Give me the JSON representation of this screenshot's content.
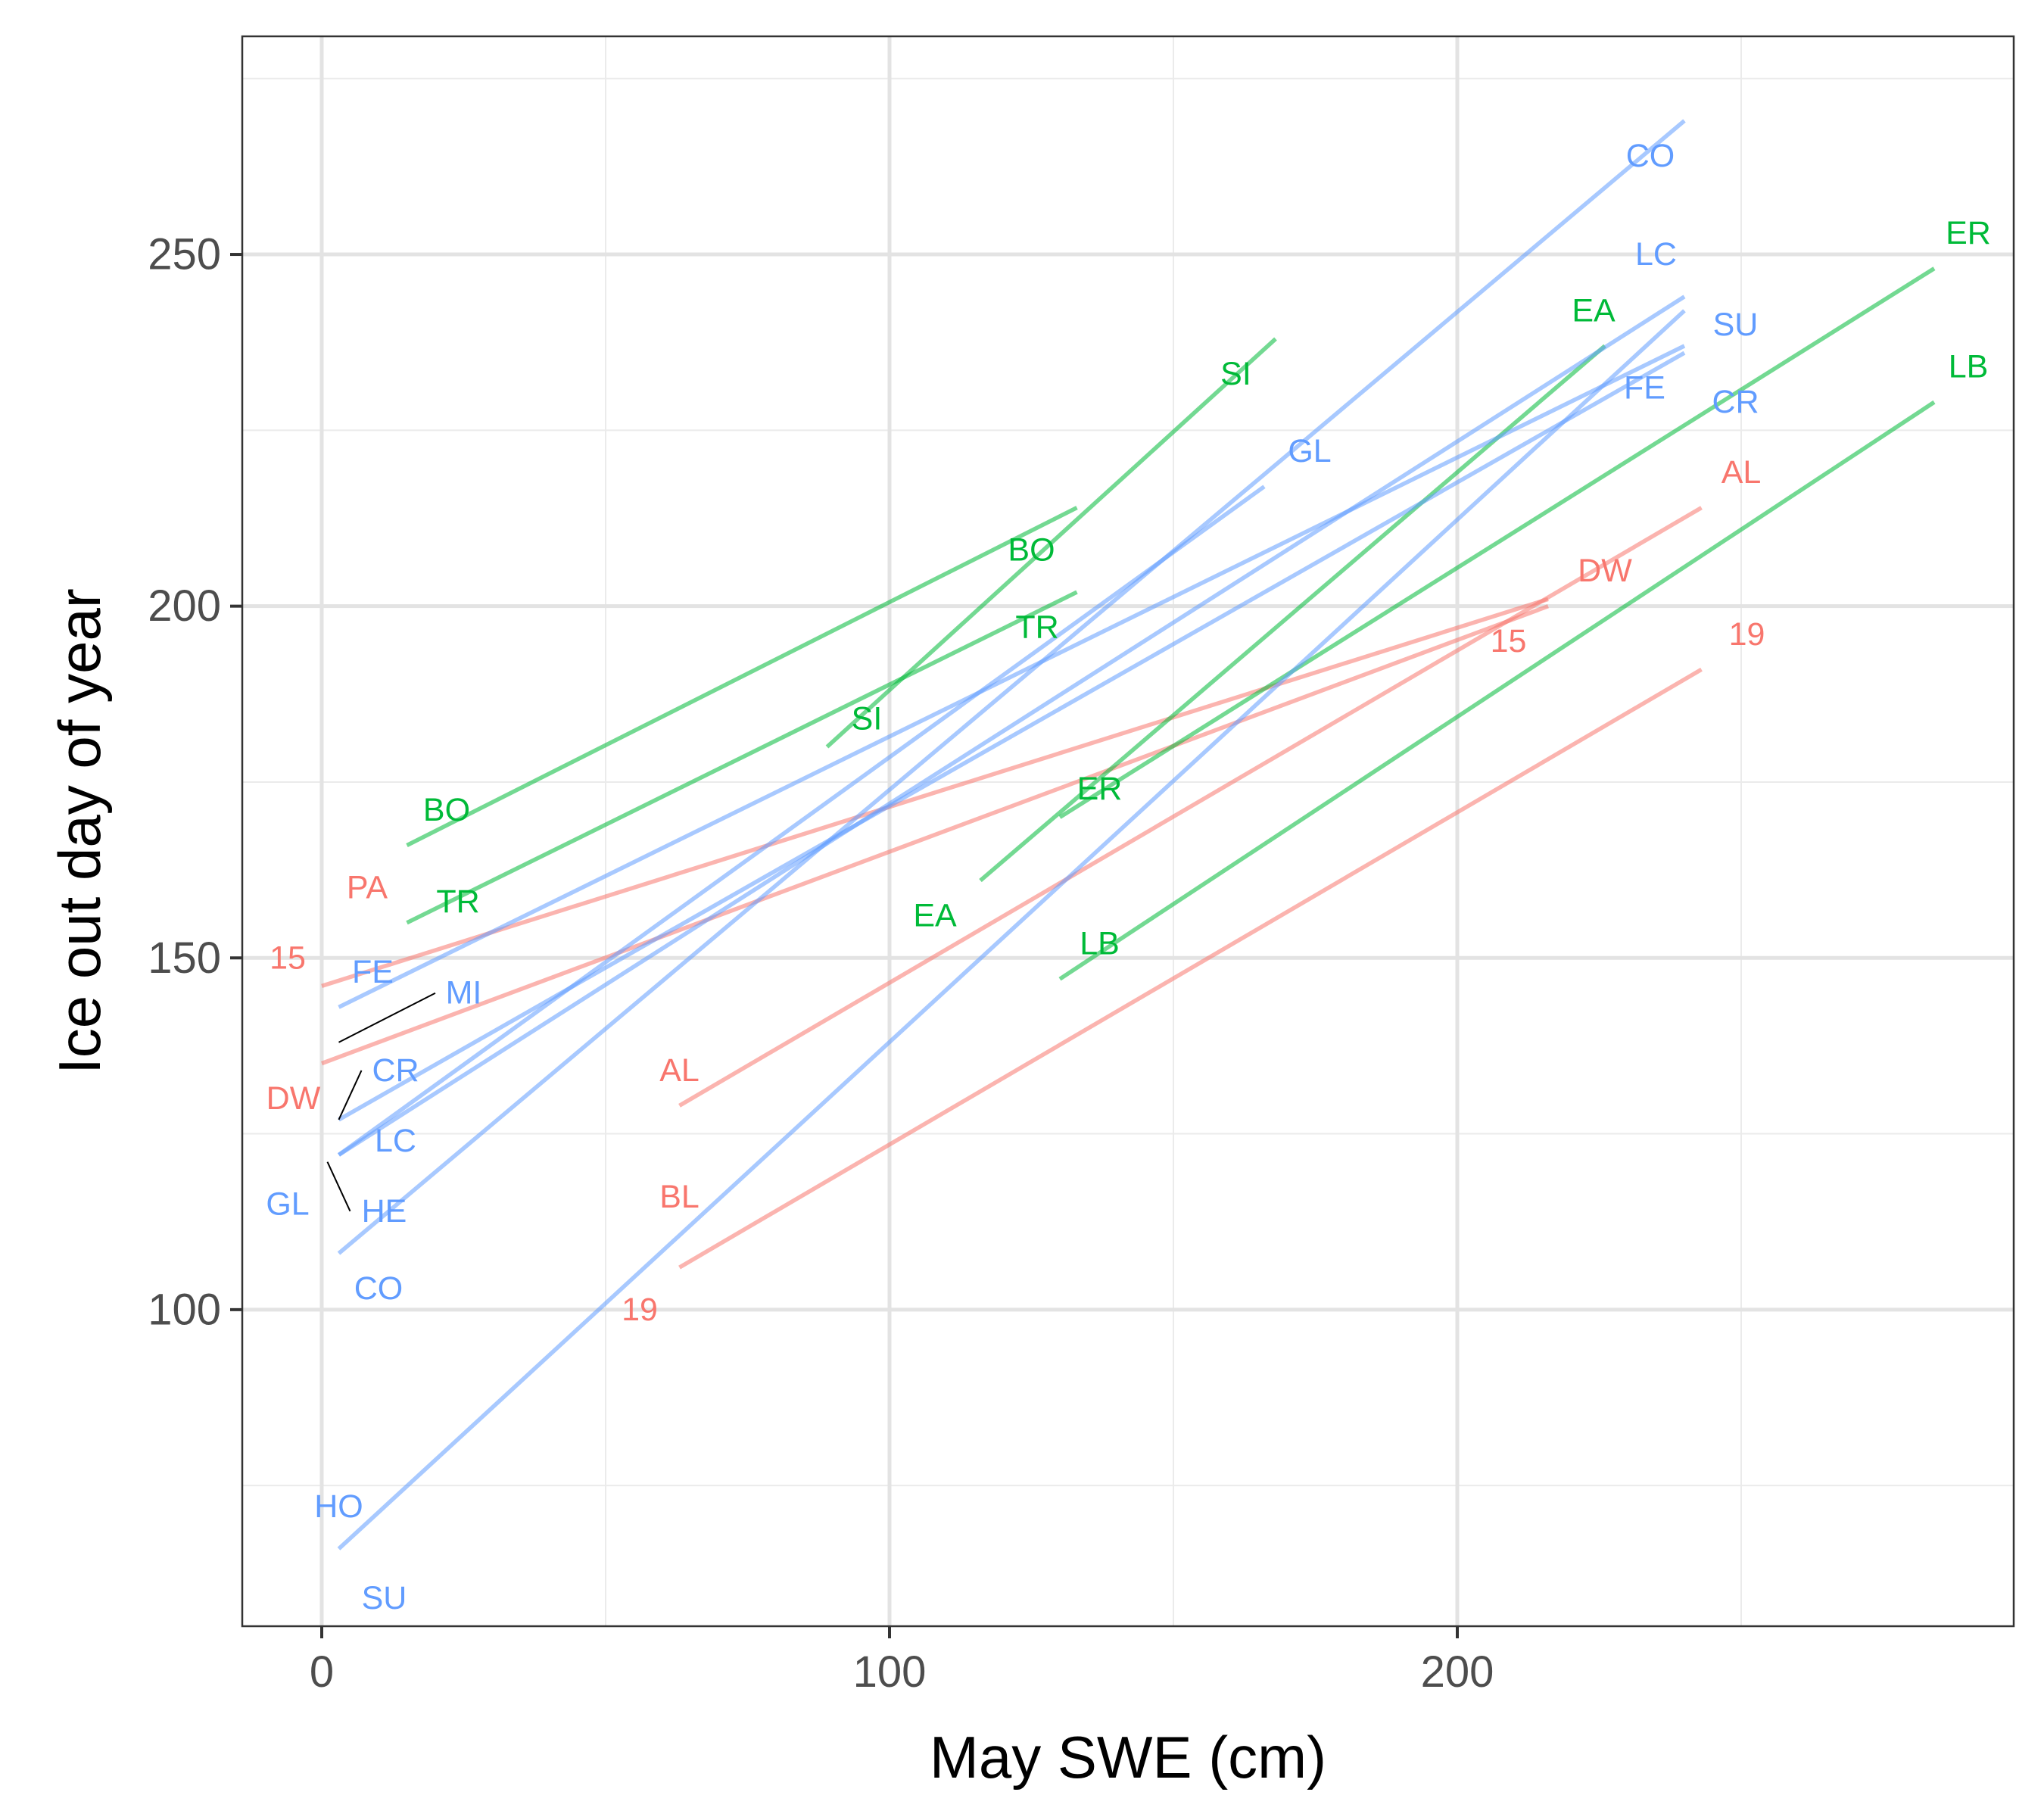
{
  "chart_data": {
    "type": "line",
    "title": "",
    "xlabel": "May SWE (cm)",
    "ylabel": "Ice out day of year",
    "xlim": [
      -14,
      298
    ],
    "ylim": [
      55,
      281
    ],
    "x_ticks": [
      0,
      100,
      200
    ],
    "x_tick_labels": [
      "0",
      "100",
      "200"
    ],
    "y_ticks": [
      100,
      150,
      200,
      250
    ],
    "y_tick_labels": [
      "100",
      "150",
      "200",
      "250"
    ],
    "x_minor_ticks": [
      50,
      150,
      250
    ],
    "y_minor_ticks": [
      75,
      125,
      175,
      225,
      275
    ],
    "grid": true,
    "legend": "none",
    "group_colors": {
      "red": "#F8766D",
      "green": "#00BA38",
      "blue": "#619CFF"
    },
    "series": [
      {
        "group": "red",
        "color": "#F8766D",
        "x": [
          0,
          216
        ],
        "y": [
          146,
          201
        ]
      },
      {
        "group": "red",
        "color": "#F8766D",
        "x": [
          0,
          216
        ],
        "y": [
          135,
          200
        ]
      },
      {
        "group": "red",
        "color": "#F8766D",
        "x": [
          63,
          243
        ],
        "y": [
          129,
          214
        ]
      },
      {
        "group": "red",
        "color": "#F8766D",
        "x": [
          63,
          243
        ],
        "y": [
          106,
          191
        ]
      },
      {
        "group": "green",
        "color": "#00BA38",
        "x": [
          15,
          133
        ],
        "y": [
          166,
          214
        ]
      },
      {
        "group": "green",
        "color": "#00BA38",
        "x": [
          15,
          133
        ],
        "y": [
          155,
          202
        ]
      },
      {
        "group": "green",
        "color": "#00BA38",
        "x": [
          89,
          168
        ],
        "y": [
          180,
          238
        ]
      },
      {
        "group": "green",
        "color": "#00BA38",
        "x": [
          116,
          226
        ],
        "y": [
          161,
          237
        ]
      },
      {
        "group": "green",
        "color": "#00BA38",
        "x": [
          130,
          284
        ],
        "y": [
          170,
          248
        ]
      },
      {
        "group": "green",
        "color": "#00BA38",
        "x": [
          130,
          284
        ],
        "y": [
          147,
          229
        ]
      },
      {
        "group": "blue",
        "color": "#619CFF",
        "x": [
          3,
          240
        ],
        "y": [
          143,
          237
        ]
      },
      {
        "group": "blue",
        "color": "#619CFF",
        "x": [
          3,
          240
        ],
        "y": [
          127,
          236
        ]
      },
      {
        "group": "blue",
        "color": "#619CFF",
        "x": [
          3,
          166
        ],
        "y": [
          122,
          217
        ]
      },
      {
        "group": "blue",
        "color": "#619CFF",
        "x": [
          3,
          240
        ],
        "y": [
          122,
          244
        ]
      },
      {
        "group": "blue",
        "color": "#619CFF",
        "x": [
          3,
          240
        ],
        "y": [
          108,
          269
        ]
      },
      {
        "group": "blue",
        "color": "#619CFF",
        "x": [
          3,
          240
        ],
        "y": [
          66,
          242
        ]
      }
    ],
    "text_labels": [
      {
        "text": "15",
        "x": -6,
        "y": 150,
        "group": "red"
      },
      {
        "text": "PA",
        "x": 8,
        "y": 160,
        "group": "red"
      },
      {
        "text": "DW",
        "x": -5,
        "y": 130,
        "group": "red"
      },
      {
        "text": "AL",
        "x": 63,
        "y": 134,
        "group": "red"
      },
      {
        "text": "BL",
        "x": 63,
        "y": 116,
        "group": "red"
      },
      {
        "text": "19",
        "x": 56,
        "y": 100,
        "group": "red"
      },
      {
        "text": "15",
        "x": 209,
        "y": 195,
        "group": "red"
      },
      {
        "text": "DW",
        "x": 226,
        "y": 205,
        "group": "red"
      },
      {
        "text": "19",
        "x": 251,
        "y": 196,
        "group": "red"
      },
      {
        "text": "AL",
        "x": 250,
        "y": 219,
        "group": "red"
      },
      {
        "text": "BO",
        "x": 22,
        "y": 171,
        "group": "green"
      },
      {
        "text": "TR",
        "x": 24,
        "y": 158,
        "group": "green"
      },
      {
        "text": "SI",
        "x": 96,
        "y": 184,
        "group": "green"
      },
      {
        "text": "EA",
        "x": 108,
        "y": 156,
        "group": "green"
      },
      {
        "text": "ER",
        "x": 137,
        "y": 174,
        "group": "green"
      },
      {
        "text": "LB",
        "x": 137,
        "y": 152,
        "group": "green"
      },
      {
        "text": "BO",
        "x": 125,
        "y": 208,
        "group": "green"
      },
      {
        "text": "TR",
        "x": 126,
        "y": 197,
        "group": "green"
      },
      {
        "text": "SI",
        "x": 161,
        "y": 233,
        "group": "green"
      },
      {
        "text": "EA",
        "x": 224,
        "y": 242,
        "group": "green"
      },
      {
        "text": "ER",
        "x": 290,
        "y": 253,
        "group": "green"
      },
      {
        "text": "LB",
        "x": 290,
        "y": 234,
        "group": "green"
      },
      {
        "text": "FE",
        "x": 9,
        "y": 148,
        "group": "blue"
      },
      {
        "text": "MI",
        "x": 25,
        "y": 145,
        "group": "blue"
      },
      {
        "text": "CR",
        "x": 13,
        "y": 134,
        "group": "blue"
      },
      {
        "text": "LC",
        "x": 13,
        "y": 124,
        "group": "blue"
      },
      {
        "text": "GL",
        "x": -6,
        "y": 115,
        "group": "blue"
      },
      {
        "text": "HE",
        "x": 11,
        "y": 114,
        "group": "blue"
      },
      {
        "text": "CO",
        "x": 10,
        "y": 103,
        "group": "blue"
      },
      {
        "text": "HO",
        "x": 3,
        "y": 72,
        "group": "blue"
      },
      {
        "text": "SU",
        "x": 11,
        "y": 59,
        "group": "blue"
      },
      {
        "text": "CO",
        "x": 234,
        "y": 264,
        "group": "blue"
      },
      {
        "text": "LC",
        "x": 235,
        "y": 250,
        "group": "blue"
      },
      {
        "text": "SU",
        "x": 249,
        "y": 240,
        "group": "blue"
      },
      {
        "text": "FE",
        "x": 233,
        "y": 231,
        "group": "blue"
      },
      {
        "text": "CR",
        "x": 249,
        "y": 229,
        "group": "blue"
      },
      {
        "text": "GL",
        "x": 174,
        "y": 222,
        "group": "blue"
      }
    ],
    "connector_segments": [
      {
        "x": [
          3,
          20
        ],
        "y": [
          138,
          145
        ]
      },
      {
        "x": [
          3,
          7
        ],
        "y": [
          127,
          134
        ]
      },
      {
        "x": [
          1,
          5
        ],
        "y": [
          121,
          114
        ]
      }
    ]
  }
}
